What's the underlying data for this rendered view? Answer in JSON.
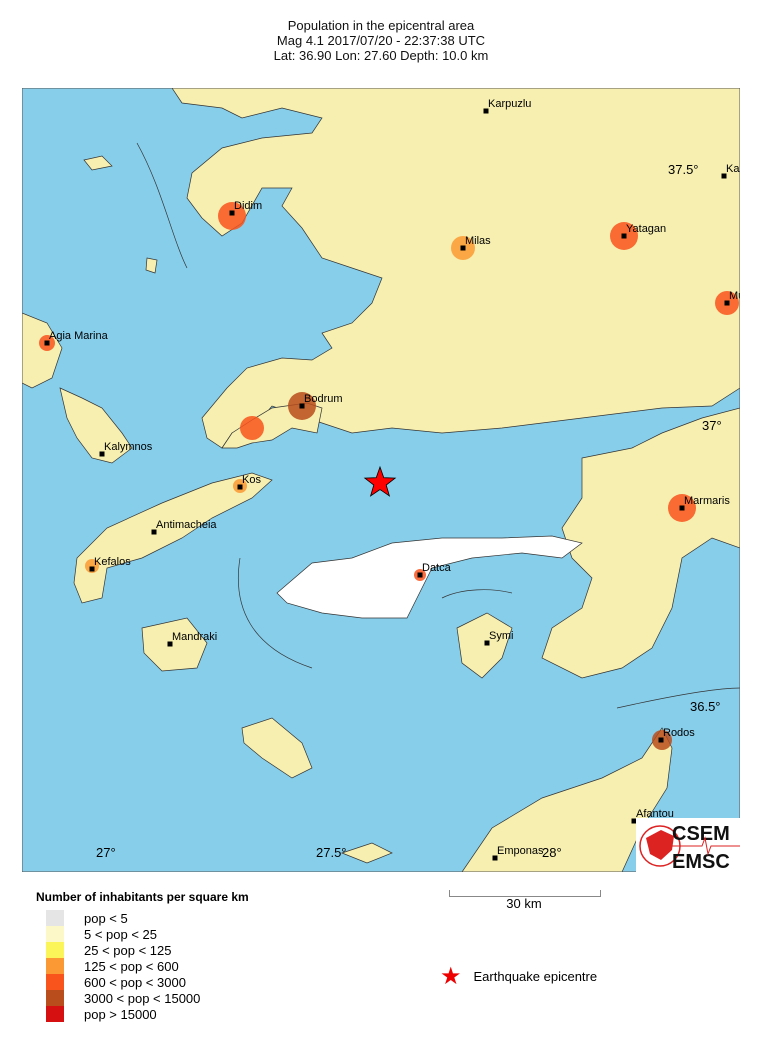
{
  "header": {
    "title": "Population in the epicentral area",
    "line2": "Mag 4.1  2017/07/20 - 22:37:38 UTC",
    "line3": "Lat: 36.90    Lon:  27.60    Depth:  10.0 km"
  },
  "map": {
    "colors": {
      "sea": "#87ceeb",
      "epicentre": "#ff0000"
    },
    "towns": [
      "Karpuzlu",
      "Ka",
      "Didim",
      "Milas",
      "Yatagan",
      "Mu",
      "Agia Marina",
      "Bodrum",
      "Kalymnos",
      "Kos",
      "Antimacheia",
      "Marmaris",
      "Kefalos",
      "Datca",
      "Mandraki",
      "Symi",
      "Rodos",
      "Afantou",
      "Emponas"
    ],
    "lat_labels": [
      "37.5°",
      "37°",
      "36.5°"
    ],
    "lon_labels": [
      "27°",
      "27.5°",
      "28°"
    ]
  },
  "legend": {
    "title": "Number of inhabitants per square km",
    "items": [
      {
        "label": "pop < 5",
        "color": "#e5e5e5"
      },
      {
        "label": "5 < pop < 25",
        "color": "#fcf8c8"
      },
      {
        "label": "25 < pop < 125",
        "color": "#fcf55a"
      },
      {
        "label": "125 < pop < 600",
        "color": "#fb9a34"
      },
      {
        "label": "600 < pop < 3000",
        "color": "#f9541c"
      },
      {
        "label": "3000 < pop < 15000",
        "color": "#b94e1c"
      },
      {
        "label": "pop > 15000",
        "color": "#d61010"
      }
    ]
  },
  "scale": {
    "label": "30 km"
  },
  "epicentre_legend": {
    "label": "Earthquake epicentre"
  },
  "logo": {
    "top": "CSEM",
    "bottom": "EMSC"
  }
}
